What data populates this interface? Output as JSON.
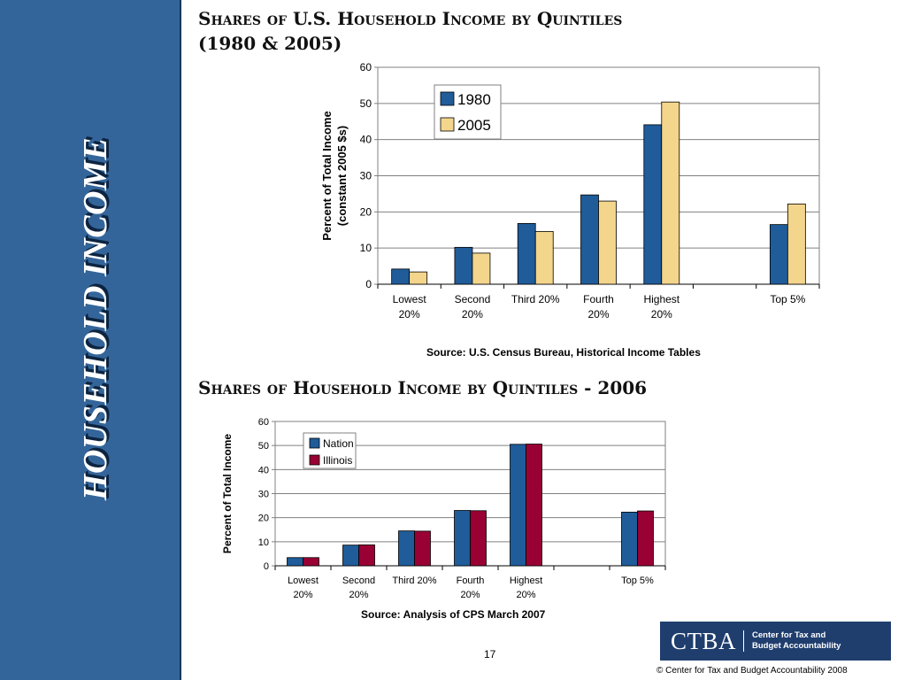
{
  "sidebar": {
    "title": "HOUSEHOLD INCOME"
  },
  "chart1": {
    "title_line1": "Shares of U.S. Household Income by Quintiles",
    "title_line2": "(1980 & 2005)",
    "source": "Source:  U.S. Census Bureau, Historical Income Tables"
  },
  "chart2": {
    "title": "Shares of Household Income by Quintiles - 2006",
    "source": "Source:  Analysis of CPS March 2007"
  },
  "page_number": "17",
  "logo": {
    "letters": "CTBA",
    "line1": "Center for Tax and",
    "line2": "Budget Accountability"
  },
  "copyright": "©  Center for Tax and Budget Accountability 2008",
  "chart_data": [
    {
      "type": "bar",
      "categories": [
        [
          "Lowest",
          "20%"
        ],
        [
          "Second",
          "20%"
        ],
        [
          "Third 20%"
        ],
        [
          "Fourth",
          "20%"
        ],
        [
          "Highest",
          "20%"
        ],
        [
          ""
        ],
        [
          "Top 5%"
        ]
      ],
      "series": [
        {
          "name": "1980",
          "color": "#1f5c99",
          "values": [
            4.2,
            10.2,
            16.8,
            24.7,
            44.1,
            null,
            16.5
          ]
        },
        {
          "name": "2005",
          "color": "#f3d58c",
          "values": [
            3.4,
            8.6,
            14.6,
            23.0,
            50.4,
            null,
            22.2
          ]
        }
      ],
      "ylabel": [
        "Percent of Total Income",
        "(constant 2005 $s)"
      ],
      "ylim": [
        0,
        60
      ],
      "yticks": [
        0,
        10,
        20,
        30,
        40,
        50,
        60
      ],
      "grid": true,
      "legend": "top-left"
    },
    {
      "type": "bar",
      "categories": [
        [
          "Lowest",
          "20%"
        ],
        [
          "Second",
          "20%"
        ],
        [
          "Third 20%"
        ],
        [
          "Fourth",
          "20%"
        ],
        [
          "Highest",
          "20%"
        ],
        [
          ""
        ],
        [
          "Top 5%"
        ]
      ],
      "series": [
        {
          "name": "Nation",
          "color": "#1f5c99",
          "values": [
            3.4,
            8.6,
            14.5,
            23.0,
            50.5,
            null,
            22.3
          ]
        },
        {
          "name": "Illinois",
          "color": "#990033",
          "values": [
            3.4,
            8.7,
            14.4,
            22.9,
            50.6,
            null,
            22.8
          ]
        }
      ],
      "ylabel": [
        "Percent of Total Income"
      ],
      "ylim": [
        0,
        60
      ],
      "yticks": [
        0,
        10,
        20,
        30,
        40,
        50,
        60
      ],
      "grid": true,
      "legend": "top-left"
    }
  ]
}
